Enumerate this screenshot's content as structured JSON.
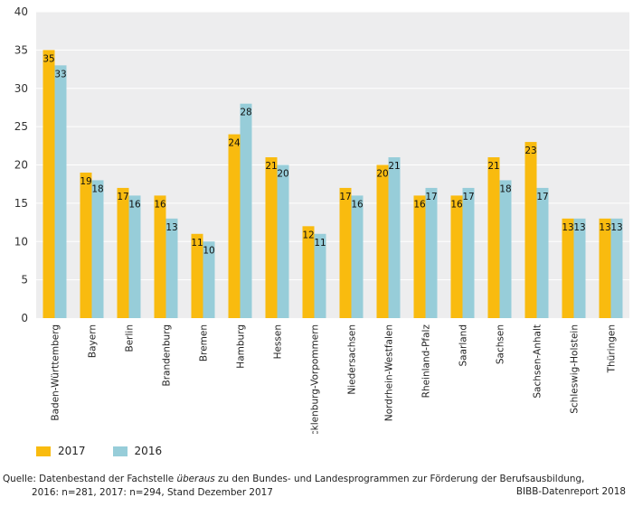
{
  "chart_data": {
    "type": "bar",
    "title": "",
    "xlabel": "",
    "ylabel": "",
    "ylim": [
      0,
      40
    ],
    "yticks": [
      0,
      5,
      10,
      15,
      20,
      25,
      30,
      35,
      40
    ],
    "categories": [
      "Baden-Württemberg",
      "Bayern",
      "Berlin",
      "Brandenburg",
      "Bremen",
      "Hamburg",
      "Hessen",
      "Mecklenburg-Vorpommern",
      "Niedersachsen",
      "Nordrhein-Westfalen",
      "Rheinland-Pfalz",
      "Saarland",
      "Sachsen",
      "Sachsen-Anhalt",
      "Schleswig-Holstein",
      "Thüringen"
    ],
    "series": [
      {
        "name": "2017",
        "color": "#f9bb0f",
        "values": [
          35,
          19,
          17,
          16,
          11,
          24,
          21,
          12,
          17,
          20,
          16,
          16,
          21,
          23,
          13,
          13
        ]
      },
      {
        "name": "2016",
        "color": "#97cdd9",
        "values": [
          33,
          18,
          16,
          13,
          10,
          28,
          20,
          11,
          16,
          21,
          17,
          17,
          18,
          17,
          13,
          13
        ]
      }
    ],
    "legend_position": "bottom-left",
    "grid": true
  },
  "source": {
    "prefix": "Quelle: Datenbestand der Fachstelle ",
    "emph": "überaus",
    "rest": " zu den Bundes- und Landesprogrammen zur Förderung der Berufsausbildung,",
    "line2": "2016: n=281, 2017: n=294, Stand Dezember 2017"
  },
  "credit": "BIBB-Datenreport 2018"
}
